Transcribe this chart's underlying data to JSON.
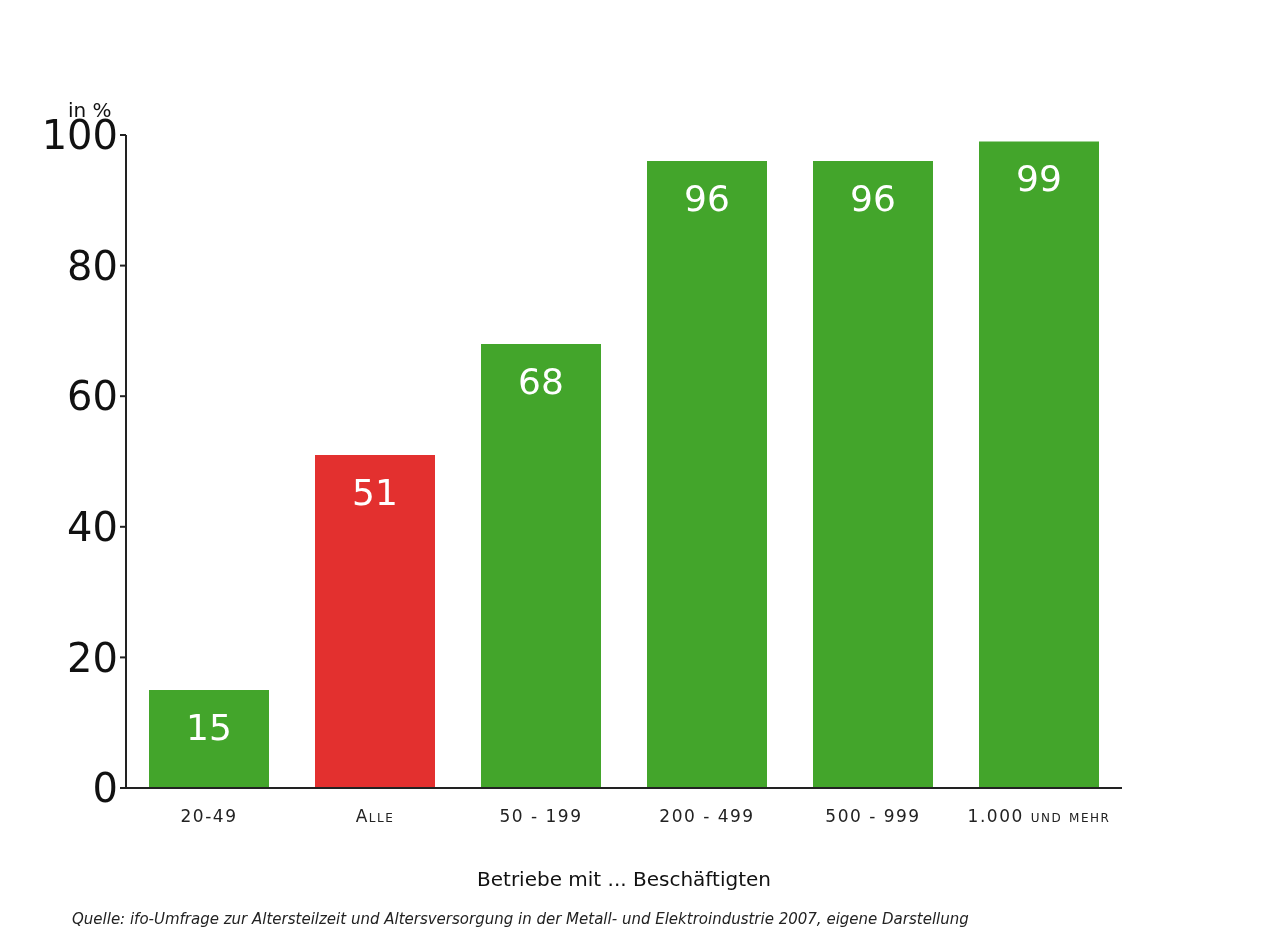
{
  "chart_data": {
    "type": "bar",
    "ylabel": "in %",
    "xlabel": "Betriebe mit ... Beschäftigten",
    "categories": [
      "20-49",
      "Alle",
      "50 - 199",
      "200 - 499",
      "500 - 999",
      "1.000 und mehr"
    ],
    "values": [
      15,
      51,
      68,
      96,
      96,
      99
    ],
    "colors": [
      "#43a52b",
      "#e3302f",
      "#43a52b",
      "#43a52b",
      "#43a52b",
      "#43a52b"
    ],
    "ylim": [
      0,
      100
    ],
    "yticks": [
      0,
      20,
      40,
      60,
      80,
      100
    ],
    "data_labels": true,
    "annotations": [
      "Quelle: ifo-Umfrage zur Altersteilzeit und Altersversorgung in der Metall- und Elektroindustrie 2007, eigene Darstellung"
    ]
  }
}
